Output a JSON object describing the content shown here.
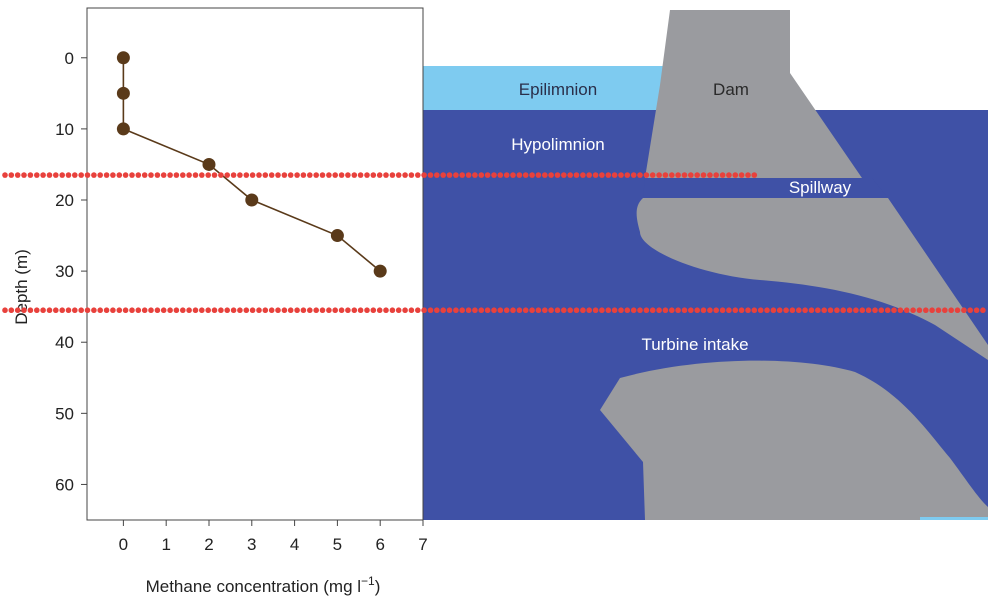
{
  "chart_data": {
    "type": "line",
    "title": "",
    "xlabel": "Methane concentration (mg l",
    "xlabel_superscript": "−1",
    "xlabel_close": ")",
    "ylabel": "Depth (m)",
    "xlim": [
      -0.85,
      7
    ],
    "ylim": [
      65,
      -7
    ],
    "y_inverted": true,
    "x_ticks": [
      0,
      1,
      2,
      3,
      4,
      5,
      6,
      7
    ],
    "y_ticks": [
      0,
      10,
      20,
      30,
      40,
      50,
      60
    ],
    "grid": false,
    "series": [
      {
        "color": "#5a3a1a",
        "marker": "circle",
        "points": [
          {
            "x": 0,
            "y": 0
          },
          {
            "x": 0,
            "y": 5
          },
          {
            "x": 0,
            "y": 10
          },
          {
            "x": 2,
            "y": 15
          },
          {
            "x": 3,
            "y": 20
          },
          {
            "x": 5,
            "y": 25
          },
          {
            "x": 6,
            "y": 30
          }
        ]
      }
    ],
    "reference_lines": [
      {
        "depth": 16.5,
        "style": "dotted",
        "color": "#e8413c"
      },
      {
        "depth": 35.5,
        "style": "dotted",
        "color": "#e8413c"
      }
    ]
  },
  "diagram": {
    "labels": {
      "epilimnion": "Epilimnion",
      "dam": "Dam",
      "hypolimnion": "Hypolimnion",
      "spillway": "Spillway",
      "turbine_intake": "Turbine intake"
    },
    "colors": {
      "epilimnion": "#7ecbf0",
      "hypolimnion": "#3f51a6",
      "dam": "#9a9b9f",
      "marker": "#5a3a1a",
      "reference_line": "#e8413c"
    }
  }
}
